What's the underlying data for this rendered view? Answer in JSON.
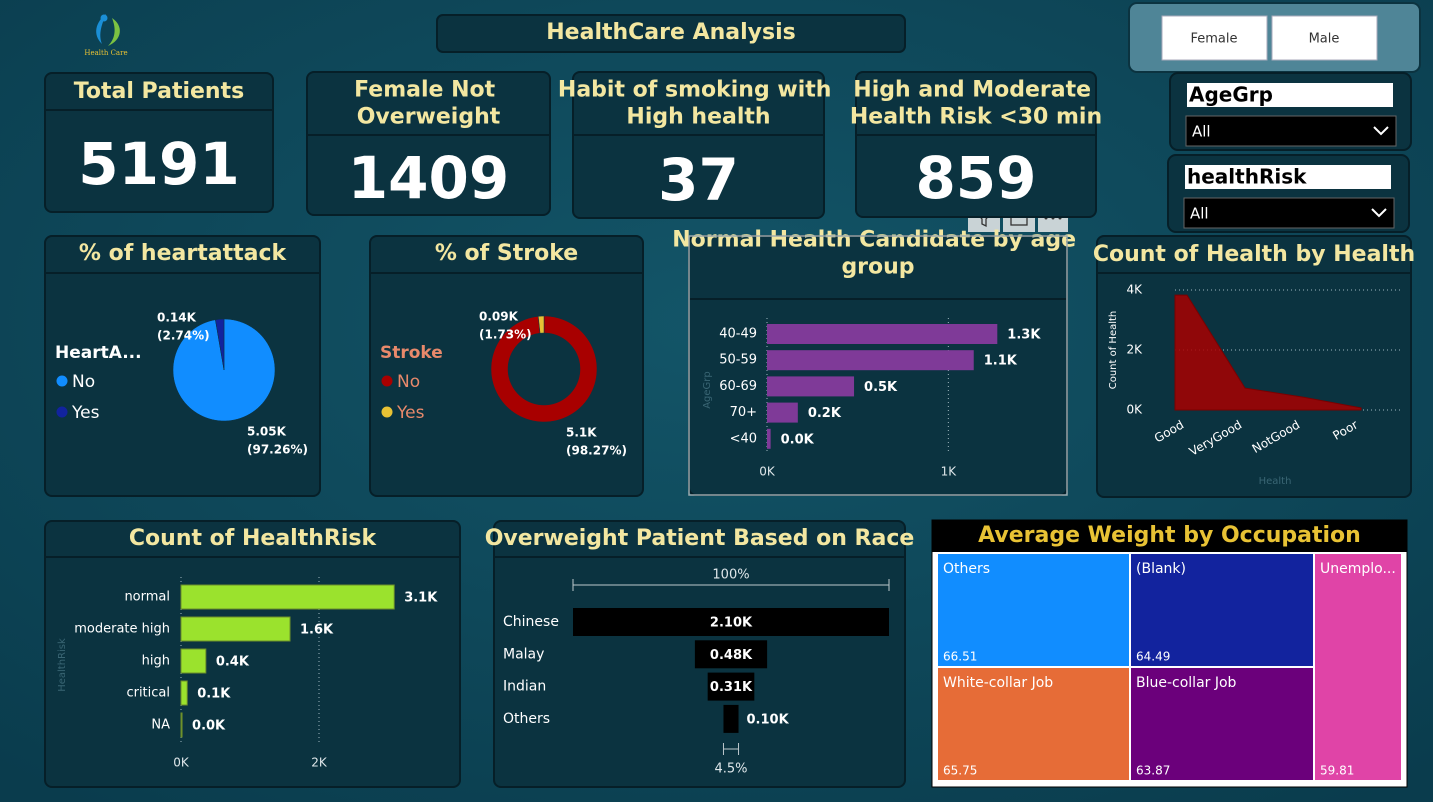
{
  "header": {
    "logo_text": "Health Care",
    "title": "HealthCare Analysis"
  },
  "gender_buttons": [
    "Female",
    "Male"
  ],
  "slicers": [
    {
      "title": "AgeGrp",
      "value": "All"
    },
    {
      "title": "healthRisk",
      "value": "All"
    }
  ],
  "kpis": [
    {
      "title": "Total Patients",
      "value": 5191
    },
    {
      "title": "Female Not Overweight",
      "value": 1409
    },
    {
      "title": "Habit of smoking with High health",
      "value": 37
    },
    {
      "title": "High and Moderate Health Risk <30 min",
      "value": 859
    }
  ],
  "chart_data": [
    {
      "type": "pie",
      "title": "% of heartattack",
      "legend_title": "HeartA...",
      "categories": [
        "No",
        "Yes"
      ],
      "values": [
        5050,
        140
      ],
      "value_labels": [
        "5.05K",
        "0.14K"
      ],
      "percents": [
        97.26,
        2.74
      ],
      "percent_labels": [
        "(97.26%)",
        "(2.74%)"
      ],
      "colors": [
        "#118dff",
        "#12239e"
      ]
    },
    {
      "type": "donut",
      "title": "% of Stroke",
      "legend_title": "Stroke",
      "categories": [
        "No",
        "Yes"
      ],
      "values": [
        5100,
        90
      ],
      "value_labels": [
        "5.1K",
        "0.09K"
      ],
      "percents": [
        98.27,
        1.73
      ],
      "percent_labels": [
        "(98.27%)",
        "(1.73%)"
      ],
      "colors": [
        "#a80000",
        "#e8c234"
      ]
    },
    {
      "type": "bar",
      "orientation": "horizontal",
      "title": "Normal Health Candidate by age group",
      "y_label": "AgeGrp",
      "categories": [
        "40-49",
        "50-59",
        "60-69",
        "70+",
        "<40"
      ],
      "values": [
        1270,
        1140,
        480,
        170,
        20
      ],
      "value_labels": [
        "1.3K",
        "1.1K",
        "0.5K",
        "0.2K",
        "0.0K"
      ],
      "color": "#7f3a98",
      "xlim": [
        0,
        1340
      ],
      "xticks": [
        {
          "value": 0,
          "label": "0K"
        },
        {
          "value": 1000,
          "label": "1K"
        }
      ],
      "grid": true
    },
    {
      "type": "area",
      "title": "Count of Health by Health",
      "x_label": "Health",
      "y_label": "Count of Health",
      "categories": [
        "Good",
        "VeryGood",
        "NotGood",
        "Poor"
      ],
      "values": [
        3830,
        730,
        430,
        70
      ],
      "color": "#a80000",
      "ylim": [
        0,
        4000
      ],
      "yticks": [
        {
          "value": 0,
          "label": "0K"
        },
        {
          "value": 2000,
          "label": "2K"
        },
        {
          "value": 4000,
          "label": "4K"
        }
      ],
      "grid": true
    },
    {
      "type": "bar",
      "orientation": "horizontal",
      "title": "Count of HealthRisk",
      "y_label": "HealthRisk",
      "categories": [
        "normal",
        "moderate high",
        "high",
        "critical",
        "NA"
      ],
      "values": [
        3090,
        1580,
        360,
        90,
        15
      ],
      "value_labels": [
        "3.1K",
        "1.6K",
        "0.4K",
        "0.1K",
        "0.0K"
      ],
      "color": "#9be22d",
      "xlim": [
        0,
        3500
      ],
      "xticks": [
        {
          "value": 0,
          "label": "0K"
        },
        {
          "value": 2000,
          "label": "2K"
        }
      ],
      "grid": true
    },
    {
      "type": "funnel",
      "title": "Overweight Patient Based on Race",
      "categories": [
        "Chinese",
        "Malay",
        "Indian",
        "Others"
      ],
      "values": [
        2100,
        480,
        310,
        100
      ],
      "value_labels": [
        "2.10K",
        "0.48K",
        "0.31K",
        "0.10K"
      ],
      "color": "#000000",
      "first_percent": {
        "value": 100,
        "label": "100%"
      },
      "last_percent": {
        "value": 4.5,
        "label": "4.5%"
      }
    },
    {
      "type": "treemap",
      "title": "Average Weight by Occupation",
      "categories": [
        "Others",
        "(Blank)",
        "Unemplo...",
        "White-collar Job",
        "Blue-collar Job"
      ],
      "values": [
        66.51,
        64.49,
        59.81,
        65.75,
        63.87
      ],
      "colors": [
        "#118dff",
        "#12239e",
        "#e044a7",
        "#e66c37",
        "#6b007b"
      ]
    }
  ]
}
